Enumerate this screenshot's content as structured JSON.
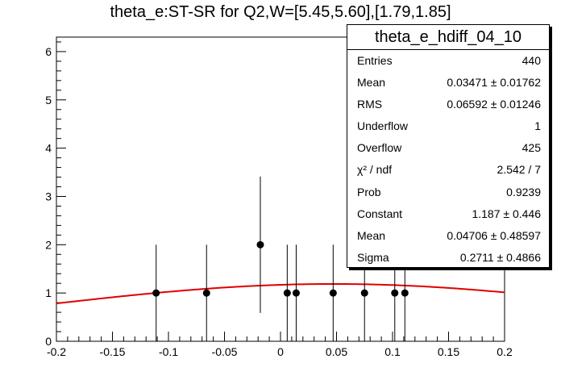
{
  "chart_data": {
    "type": "scatter",
    "title": "theta_e:ST-SR for Q2,W=[5.45,5.60],[1.79,1.85]",
    "xlim": [
      -0.2,
      0.2
    ],
    "ylim": [
      0,
      6.3
    ],
    "x_ticks": [
      "-0.2",
      "-0.15",
      "-0.1",
      "-0.05",
      "0",
      "0.05",
      "0.1",
      "0.15",
      "0.2"
    ],
    "y_ticks": [
      "0",
      "1",
      "2",
      "3",
      "4",
      "5",
      "6"
    ],
    "points": [
      {
        "x": -0.111,
        "y": 1,
        "err": 1
      },
      {
        "x": -0.066,
        "y": 1,
        "err": 1
      },
      {
        "x": -0.018,
        "y": 2,
        "err": 1.414
      },
      {
        "x": 0.006,
        "y": 1,
        "err": 1
      },
      {
        "x": 0.014,
        "y": 1,
        "err": 1
      },
      {
        "x": 0.047,
        "y": 1,
        "err": 1
      },
      {
        "x": 0.075,
        "y": 1,
        "err": 1
      },
      {
        "x": 0.102,
        "y": 1,
        "err": 1
      },
      {
        "x": 0.111,
        "y": 1,
        "err": 1
      }
    ],
    "fit": {
      "constant": 1.187,
      "mean": 0.04706,
      "sigma": 0.2711,
      "color": "#e00000"
    },
    "stats": {
      "title": "theta_e_hdiff_04_10",
      "rows": [
        {
          "label": "Entries",
          "value": "440"
        },
        {
          "label": "Mean",
          "value": "0.03471 ± 0.01762"
        },
        {
          "label": "RMS",
          "value": "0.06592 ± 0.01246"
        },
        {
          "label": "Underflow",
          "value": "1"
        },
        {
          "label": "Overflow",
          "value": "425"
        },
        {
          "label": "χ² / ndf",
          "value": "2.542 / 7"
        },
        {
          "label": "Prob",
          "value": "0.9239"
        },
        {
          "label": "Constant",
          "value": "1.187 ± 0.446"
        },
        {
          "label": "Mean",
          "value": "0.04706 ± 0.48597"
        },
        {
          "label": "Sigma",
          "value": "0.2711 ± 0.4866"
        }
      ]
    }
  }
}
